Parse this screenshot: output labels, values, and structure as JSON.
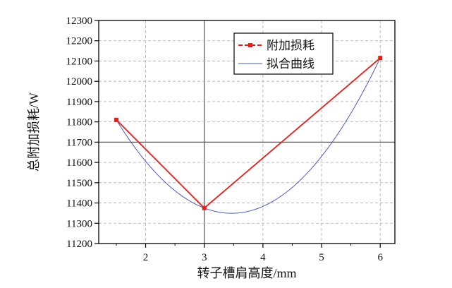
{
  "chart_data": {
    "type": "line",
    "xlabel": "转子槽肩高度/mm",
    "ylabel": "总附加损耗/W",
    "xlim": [
      1.2,
      6.25
    ],
    "ylim": [
      11200,
      12300
    ],
    "xticks": [
      2,
      3,
      4,
      5,
      6
    ],
    "yticks": [
      11200,
      11300,
      11400,
      11500,
      11600,
      11700,
      11800,
      11900,
      12000,
      12100,
      12200,
      12300
    ],
    "grid": "dashed major gridlines, solid lines at x=3 and y=11700",
    "legend_position": "top-right",
    "series": [
      {
        "name": "附加损耗",
        "style": "line-with-square-markers",
        "color": "#e0201a",
        "x": [
          1.5,
          3,
          6
        ],
        "y": [
          11810,
          11375,
          12115
        ]
      },
      {
        "name": "拟合曲线",
        "style": "smooth-line",
        "color": "#4a5bbf",
        "x": [
          1.5,
          3,
          6
        ],
        "y": [
          11810,
          11375,
          12115
        ]
      }
    ]
  }
}
